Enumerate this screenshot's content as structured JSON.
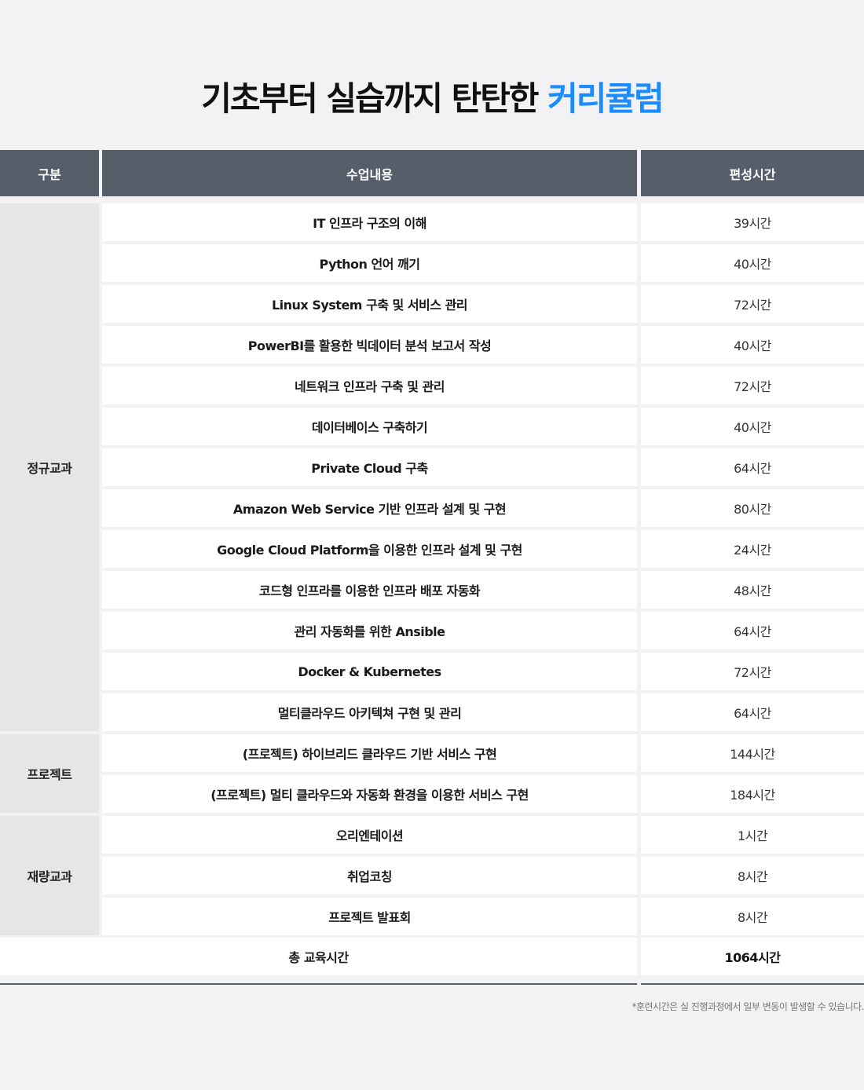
{
  "title": {
    "main": "기초부터 실습까지 탄탄한 ",
    "accent": "커리큘럼",
    "accent_color": "#1a8cff"
  },
  "header": {
    "category": "구분",
    "content": "수업내용",
    "hours": "편성시간"
  },
  "groups": [
    {
      "label": "정규교과",
      "rows": [
        {
          "course": "IT 인프라 구조의 이해",
          "hours": "39시간"
        },
        {
          "course": "Python 언어 깨기",
          "hours": "40시간"
        },
        {
          "course": "Linux System 구축 및 서비스 관리",
          "hours": "72시간"
        },
        {
          "course": "PowerBI를 활용한 빅데이터 분석 보고서 작성",
          "hours": "40시간"
        },
        {
          "course": "네트워크 인프라 구축 및 관리",
          "hours": "72시간"
        },
        {
          "course": "데이터베이스 구축하기",
          "hours": "40시간"
        },
        {
          "course": "Private Cloud 구축",
          "hours": "64시간"
        },
        {
          "course": "Amazon Web Service 기반 인프라 설계 및 구현",
          "hours": "80시간"
        },
        {
          "course": "Google Cloud Platform을 이용한 인프라 설계 및 구현",
          "hours": "24시간"
        },
        {
          "course": "코드형 인프라를 이용한 인프라 배포 자동화",
          "hours": "48시간"
        },
        {
          "course": "관리 자동화를 위한 Ansible",
          "hours": "64시간"
        },
        {
          "course": "Docker & Kubernetes",
          "hours": "72시간"
        },
        {
          "course": "멀티클라우드 아키텍쳐 구현 및 관리",
          "hours": "64시간"
        }
      ]
    },
    {
      "label": "프로젝트",
      "rows": [
        {
          "course": "(프로젝트) 하이브리드 클라우드 기반 서비스 구현",
          "hours": "144시간"
        },
        {
          "course": "(프로젝트) 멀티 클라우드와 자동화 환경을 이용한 서비스 구현",
          "hours": "184시간"
        }
      ]
    },
    {
      "label": "재량교과",
      "rows": [
        {
          "course": "오리엔테이션",
          "hours": "1시간"
        },
        {
          "course": "취업코칭",
          "hours": "8시간"
        },
        {
          "course": "프로젝트 발표회",
          "hours": "8시간"
        }
      ]
    }
  ],
  "total": {
    "label": "총 교육시간",
    "hours": "1064시간"
  },
  "footnote": "*훈련시간은 실 진행과정에서 일부 변동이 발생할 수 있습니다."
}
